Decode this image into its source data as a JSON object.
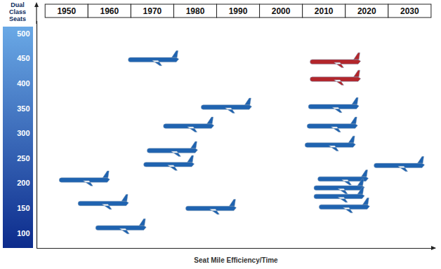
{
  "chart_data": {
    "type": "scatter",
    "marker": "airplane",
    "x_label": "Seat Mile Efficiency/Time",
    "y_label": "Dual Class Seats",
    "xlim": [
      1943,
      2036
    ],
    "xticks": [
      1950,
      1960,
      1970,
      1980,
      1990,
      2000,
      2010,
      2020,
      2030
    ],
    "ylim": [
      70,
      525
    ],
    "yticks": [
      100,
      150,
      200,
      250,
      300,
      350,
      400,
      450,
      500
    ],
    "x": [
      1970.2,
      1954.1,
      1958.5,
      1962.6,
      1978.4,
      1974.6,
      1973.8,
      1987.2,
      1983.6,
      2012.6,
      2012.6,
      2012.2,
      2011.9,
      2011.4,
      2027.5,
      2014.4,
      2013.5,
      2013.5,
      2014.7
    ],
    "values": [
      448,
      207,
      160,
      111,
      315,
      266,
      238,
      353,
      150,
      444,
      409,
      354,
      315,
      277,
      236,
      209,
      191,
      174,
      153
    ],
    "colors": [
      "#1f63b0",
      "#1f63b0",
      "#1f63b0",
      "#1f63b0",
      "#1f63b0",
      "#1f63b0",
      "#1f63b0",
      "#1f63b0",
      "#1f63b0",
      "#b3262b",
      "#b3262b",
      "#1f63b0",
      "#1f63b0",
      "#1f63b0",
      "#1f63b0",
      "#1f63b0",
      "#1f63b0",
      "#1f63b0",
      "#1f63b0"
    ]
  }
}
